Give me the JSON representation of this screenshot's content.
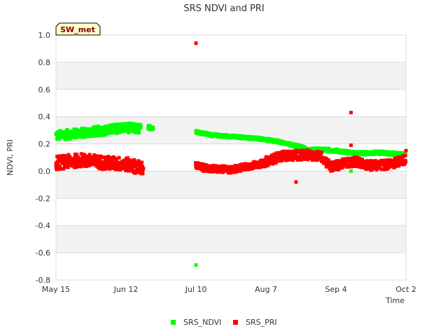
{
  "chart_data": {
    "type": "scatter",
    "title": "SRS NDVI and PRI",
    "site_badge": "SW_met",
    "xlabel": "Time",
    "ylabel": "NDVI, PRI",
    "ylim": [
      -0.8,
      1.0
    ],
    "y_ticks": [
      "1.0",
      "0.8",
      "0.6",
      "0.4",
      "0.2",
      "0.0",
      "-0.2",
      "-0.4",
      "-0.6",
      "-0.8"
    ],
    "x_range_days": [
      0,
      140
    ],
    "x_ticks": [
      {
        "label": "May 15",
        "day": 0
      },
      {
        "label": "Jun 12",
        "day": 28
      },
      {
        "label": "Jul 10",
        "day": 56
      },
      {
        "label": "Aug 7",
        "day": 84
      },
      {
        "label": "Sep 4",
        "day": 112
      },
      {
        "label": "Oct 2",
        "day": 140
      }
    ],
    "colors": {
      "SRS_NDVI": "#00ff00",
      "SRS_PRI": "#ff0000",
      "band": "#f2f2f2",
      "grid": "#dddddd",
      "badge_fill": "#ffffcc",
      "badge_text": "#8b0000"
    },
    "series": [
      {
        "name": "SRS_NDVI",
        "segments": [
          {
            "start": 0,
            "end": 34,
            "ctrl": [
              [
                0,
                0.26
              ],
              [
                10,
                0.28
              ],
              [
                20,
                0.3
              ],
              [
                27,
                0.32
              ],
              [
                34,
                0.31
              ]
            ],
            "spread": 0.035,
            "step": 0.3
          },
          {
            "start": 37,
            "end": 39,
            "ctrl": [
              [
                37,
                0.32
              ],
              [
                39,
                0.32
              ]
            ],
            "spread": 0.015,
            "step": 0.3
          },
          {
            "start": 56,
            "end": 100,
            "ctrl": [
              [
                56,
                0.29
              ],
              [
                62,
                0.265
              ],
              [
                70,
                0.255
              ],
              [
                80,
                0.24
              ],
              [
                88,
                0.22
              ],
              [
                95,
                0.19
              ],
              [
                100,
                0.17
              ]
            ],
            "spread": 0.01,
            "step": 0.25
          },
          {
            "start": 96,
            "end": 140,
            "ctrl": [
              [
                96,
                0.17
              ],
              [
                100,
                0.15
              ],
              [
                105,
                0.16
              ],
              [
                112,
                0.15
              ],
              [
                116,
                0.14
              ],
              [
                120,
                0.13
              ],
              [
                130,
                0.135
              ],
              [
                140,
                0.12
              ]
            ],
            "spread": 0.012,
            "step": 0.3
          }
        ],
        "outliers": [
          [
            56,
            0.94
          ],
          [
            56,
            -0.69
          ],
          [
            118,
            0.0
          ]
        ]
      },
      {
        "name": "SRS_PRI",
        "segments": [
          {
            "start": 0,
            "end": 35,
            "ctrl": [
              [
                0,
                0.06
              ],
              [
                10,
                0.08
              ],
              [
                20,
                0.06
              ],
              [
                28,
                0.05
              ],
              [
                35,
                0.02
              ]
            ],
            "spread": 0.05,
            "step": 0.3
          },
          {
            "start": 56,
            "end": 84,
            "ctrl": [
              [
                56,
                0.04
              ],
              [
                60,
                0.02
              ],
              [
                70,
                0.01
              ],
              [
                78,
                0.04
              ],
              [
                84,
                0.06
              ]
            ],
            "spread": 0.025,
            "step": 0.3
          },
          {
            "start": 84,
            "end": 140,
            "ctrl": [
              [
                84,
                0.07
              ],
              [
                90,
                0.11
              ],
              [
                100,
                0.12
              ],
              [
                106,
                0.11
              ],
              [
                110,
                0.03
              ],
              [
                116,
                0.06
              ],
              [
                120,
                0.07
              ],
              [
                126,
                0.04
              ],
              [
                134,
                0.05
              ],
              [
                140,
                0.09
              ]
            ],
            "spread": 0.035,
            "step": 0.3
          }
        ],
        "outliers": [
          [
            56,
            0.94
          ],
          [
            118,
            0.43
          ],
          [
            96,
            -0.08
          ],
          [
            118,
            0.19
          ],
          [
            140,
            0.15
          ]
        ]
      }
    ],
    "legend": [
      "SRS_NDVI",
      "SRS_PRI"
    ]
  }
}
